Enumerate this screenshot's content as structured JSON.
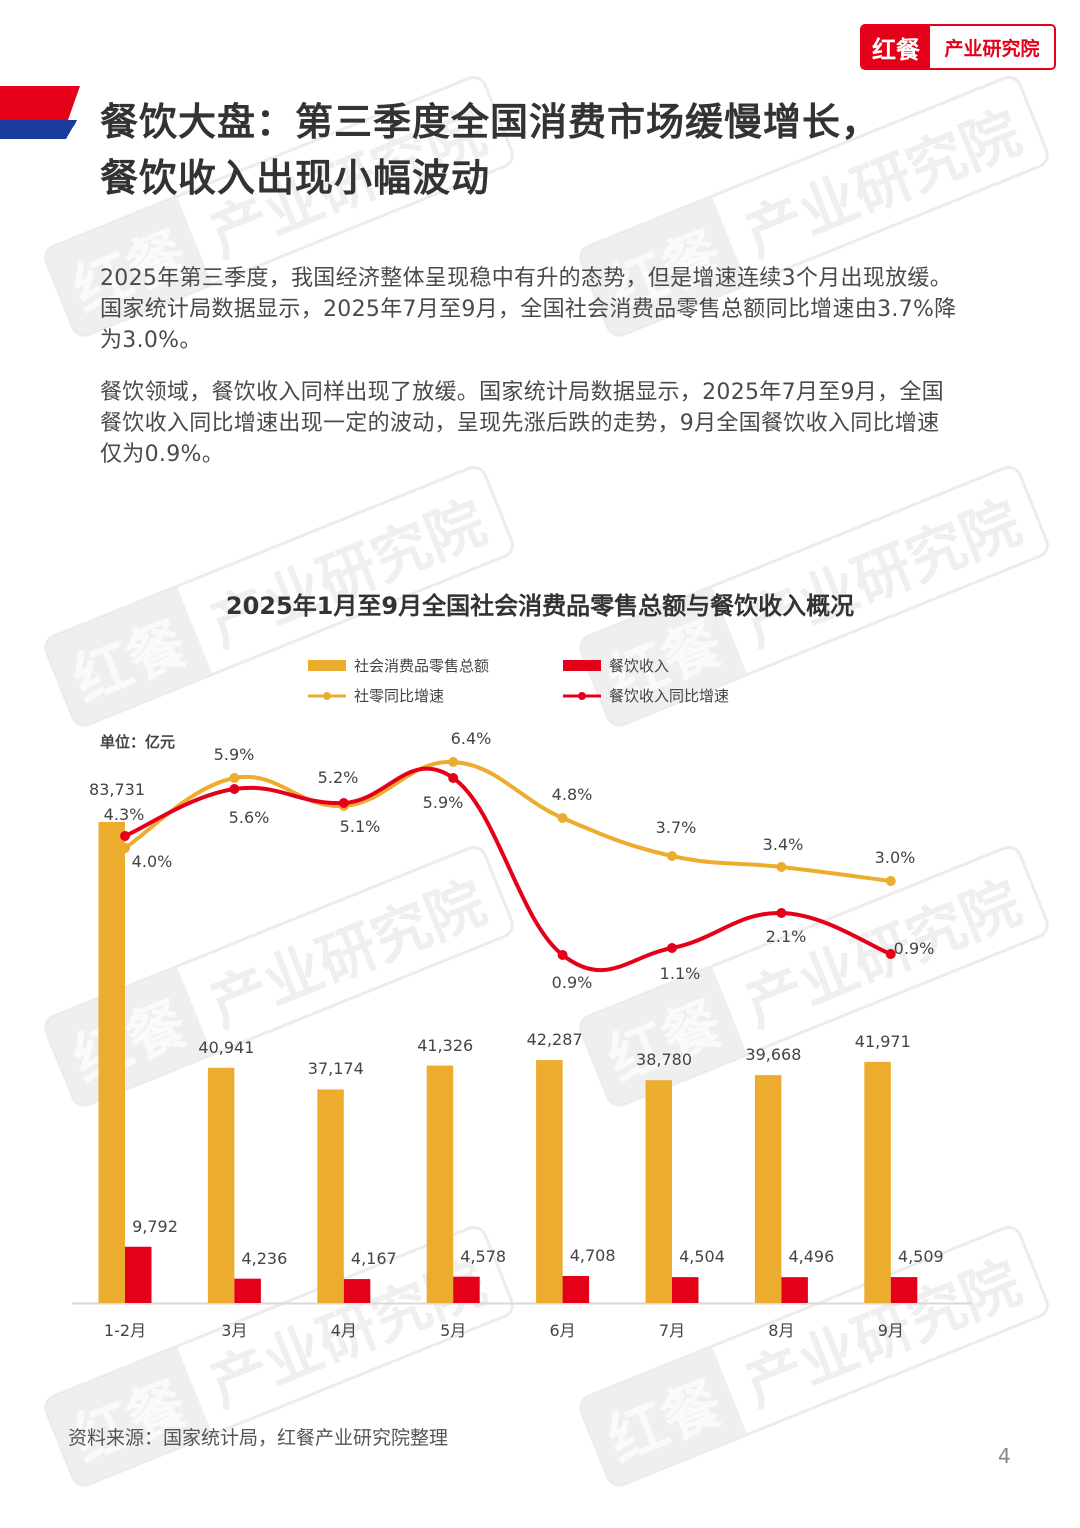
{
  "header": {
    "logo_left": "红餐",
    "logo_right": "产业研究院",
    "title_line1": "餐饮大盘：第三季度全国消费市场缓慢增长，",
    "title_line2": "餐饮收入出现小幅波动"
  },
  "body": {
    "paragraphs": [
      "2025年第三季度，我国经济整体呈现稳中有升的态势，但是增速连续3个月出现放缓。国家统计局数据显示，2025年7月至9月，全国社会消费品零售总额同比增速由3.7%降为3.0%。",
      "餐饮领域，餐饮收入同样出现了放缓。国家统计局数据显示，2025年7月至9月，全国餐饮收入同比增速出现一定的波动，呈现先涨后跌的走势，9月全国餐饮收入同比增速仅为0.9%。"
    ]
  },
  "watermark": {
    "left": "红餐",
    "right": "产业研究院"
  },
  "colors": {
    "accent_red": "#e5001a",
    "accent_blue": "#1a3a9c",
    "bar_yellow": "#ecac2e",
    "bar_red": "#e5001a"
  },
  "chart": {
    "unit": "单位：亿元",
    "legend": {
      "retail_total": "社会消费品零售总额",
      "catering_revenue": "餐饮收入",
      "retail_yoy": "社零同比增速",
      "catering_yoy": "餐饮收入同比增速"
    },
    "source": "资料来源：国家统计局，红餐产业研究院整理"
  },
  "chart_data": {
    "type": "bar",
    "title": "2025年1月至9月全国社会消费品零售总额与餐饮收入概况",
    "xlabel": "",
    "ylabel": "单位：亿元",
    "categories": [
      "1-2月",
      "3月",
      "4月",
      "5月",
      "6月",
      "7月",
      "8月",
      "9月"
    ],
    "series": [
      {
        "name": "社会消费品零售总额",
        "type": "bar",
        "color": "#ecac2e",
        "values": [
          83731,
          40941,
          37174,
          41326,
          42287,
          38780,
          39668,
          41971
        ],
        "labels": [
          "83,731",
          "40,941",
          "37,174",
          "41,326",
          "42,287",
          "38,780",
          "39,668",
          "41,971"
        ]
      },
      {
        "name": "餐饮收入",
        "type": "bar",
        "color": "#e5001a",
        "values": [
          9792,
          4236,
          4167,
          4578,
          4708,
          4504,
          4496,
          4509
        ],
        "labels": [
          "9,792",
          "4,236",
          "4,167",
          "4,578",
          "4,708",
          "4,504",
          "4,496",
          "4,509"
        ]
      },
      {
        "name": "社零同比增速",
        "type": "line",
        "color": "#ecac2e",
        "unit": "%",
        "values": [
          4.0,
          5.9,
          5.2,
          6.4,
          4.8,
          3.7,
          3.4,
          3.0
        ],
        "labels": [
          "4.0%",
          "5.9%",
          "5.2%",
          "6.4%",
          "4.8%",
          "3.7%",
          "3.4%",
          "3.0%"
        ]
      },
      {
        "name": "餐饮收入同比增速",
        "type": "line",
        "color": "#e5001a",
        "unit": "%",
        "values": [
          4.3,
          5.6,
          5.1,
          5.9,
          0.9,
          1.1,
          2.1,
          0.9
        ],
        "labels": [
          "4.3%",
          "5.6%",
          "5.1%",
          "5.9%",
          "0.9%",
          "1.1%",
          "2.1%",
          "0.9%"
        ]
      }
    ],
    "grid": false,
    "legend_position": "top",
    "secondary_axis": "percent (lines)"
  },
  "page": {
    "number": "4"
  }
}
